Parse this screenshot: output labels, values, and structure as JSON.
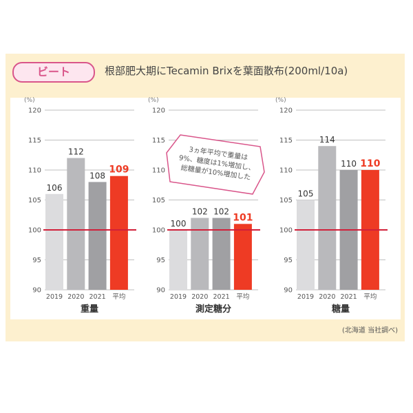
{
  "header": {
    "badge": "ビート",
    "title": "根部肥大期にTecamin Brixを葉面散布(200ml/10a)"
  },
  "annotation": {
    "lines": [
      "3ヵ年平均で重量は",
      "9%、糖度は1%増加し、",
      "総糖量が10%増加した"
    ]
  },
  "footnote": "(北海道 当社調べ)",
  "colors": {
    "2019": "#dcdcde",
    "2020": "#b9b9bc",
    "2021": "#a0a0a3",
    "average": "#ee3b24",
    "reference_line": "#d1203a",
    "annotation_border": "#d9558a",
    "panel": "#fdf0cf"
  },
  "chart_data": [
    {
      "type": "bar",
      "title": "重量",
      "ylabel": "(%)",
      "ylim": [
        90,
        120
      ],
      "yticks": [
        90,
        95,
        100,
        105,
        110,
        115,
        120
      ],
      "grid": true,
      "reference": 100,
      "categories": [
        "2019",
        "2020",
        "2021",
        "平均"
      ],
      "values": [
        106,
        112,
        108,
        109
      ]
    },
    {
      "type": "bar",
      "title": "測定糖分",
      "ylabel": "(%)",
      "ylim": [
        90,
        120
      ],
      "yticks": [
        90,
        95,
        100,
        105,
        110,
        115,
        120
      ],
      "grid": true,
      "reference": 100,
      "categories": [
        "2019",
        "2020",
        "2021",
        "平均"
      ],
      "values": [
        100,
        102,
        102,
        101
      ]
    },
    {
      "type": "bar",
      "title": "糖量",
      "ylabel": "(%)",
      "ylim": [
        90,
        120
      ],
      "yticks": [
        90,
        95,
        100,
        105,
        110,
        115,
        120
      ],
      "grid": true,
      "reference": 100,
      "categories": [
        "2019",
        "2020",
        "2021",
        "平均"
      ],
      "values": [
        105,
        114,
        110,
        110
      ]
    }
  ]
}
